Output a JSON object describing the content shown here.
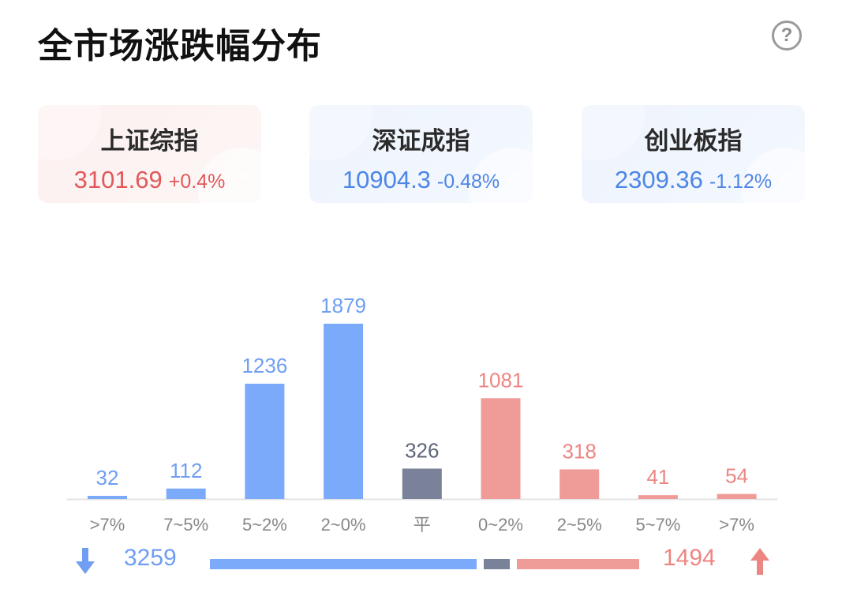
{
  "header": {
    "title": "全市场涨跌幅分布",
    "help_icon": "question-circle-icon"
  },
  "indices": [
    {
      "name": "上证综指",
      "price": "3101.69",
      "change": "+0.4%",
      "trend": "up",
      "color": "#e2585a"
    },
    {
      "name": "深证成指",
      "price": "10904.3",
      "change": "-0.48%",
      "trend": "down",
      "color": "#4d86e6"
    },
    {
      "name": "创业板指",
      "price": "2309.36",
      "change": "-1.12%",
      "trend": "down",
      "color": "#4d86e6"
    }
  ],
  "chart_data": {
    "type": "bar",
    "categories": [
      ">7%",
      "7~5%",
      "5~2%",
      "2~0%",
      "平",
      "0~2%",
      "2~5%",
      "5~7%",
      ">7%"
    ],
    "values": [
      32,
      112,
      1236,
      1879,
      326,
      1081,
      318,
      41,
      54
    ],
    "groups": [
      "down",
      "down",
      "down",
      "down",
      "flat",
      "up",
      "up",
      "up",
      "up"
    ],
    "colors": {
      "down": "#7baafa",
      "flat": "#7a8299",
      "up": "#ef9b98",
      "down_label": "#6f9ef2",
      "flat_label": "#5f6678",
      "up_label": "#ec8683"
    },
    "title": "",
    "xlabel": "",
    "ylabel": "",
    "ylim": [
      0,
      1879
    ]
  },
  "summary": {
    "down_total": "3259",
    "up_total": "1494",
    "flat_total": 326,
    "down_icon": "arrow-down-icon",
    "up_icon": "arrow-up-icon"
  }
}
